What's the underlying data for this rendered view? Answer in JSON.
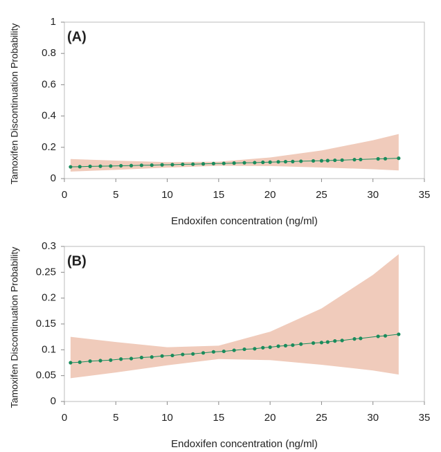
{
  "chart_data": [
    {
      "type": "line",
      "label": "(A)",
      "xlabel": "Endoxifen concentration (ng/ml)",
      "ylabel": "Tamoxifen Discontinuation Probability",
      "xlim": [
        0,
        35
      ],
      "ylim": [
        0,
        1
      ],
      "xticks": [
        0,
        5,
        10,
        15,
        20,
        25,
        30,
        35
      ],
      "yticks": [
        0,
        0.2,
        0.4,
        0.6,
        0.8,
        1
      ],
      "color": "#1a8c5c",
      "x": [
        0.6,
        1.5,
        2.5,
        3.5,
        4.5,
        5.5,
        6.5,
        7.5,
        8.5,
        9.5,
        10.5,
        11.5,
        12.5,
        13.5,
        14.5,
        15.5,
        16.5,
        17.5,
        18.5,
        19.3,
        20,
        20.8,
        21.5,
        22.2,
        23,
        24.2,
        25,
        25.6,
        26.3,
        27,
        28.2,
        28.8,
        30.5,
        31.2,
        32.5
      ],
      "values": [
        0.075,
        0.076,
        0.078,
        0.079,
        0.08,
        0.082,
        0.083,
        0.085,
        0.086,
        0.088,
        0.089,
        0.091,
        0.092,
        0.094,
        0.096,
        0.097,
        0.099,
        0.101,
        0.102,
        0.104,
        0.105,
        0.107,
        0.108,
        0.109,
        0.111,
        0.113,
        0.114,
        0.115,
        0.117,
        0.118,
        0.121,
        0.122,
        0.126,
        0.127,
        0.13
      ],
      "band": {
        "color": "#f0cbbb",
        "x": [
          0.6,
          5,
          10,
          15,
          20,
          25,
          30,
          32.5
        ],
        "lower": [
          0.045,
          0.056,
          0.07,
          0.082,
          0.08,
          0.071,
          0.06,
          0.052
        ],
        "upper": [
          0.125,
          0.115,
          0.105,
          0.108,
          0.135,
          0.18,
          0.245,
          0.285
        ]
      }
    },
    {
      "type": "line",
      "label": "(B)",
      "xlabel": "Endoxifen concentration (ng/ml)",
      "ylabel": "Tamoxifen Discontinuation Probability",
      "xlim": [
        0,
        35
      ],
      "ylim": [
        0,
        0.3
      ],
      "xticks": [
        0,
        5,
        10,
        15,
        20,
        25,
        30,
        35
      ],
      "yticks": [
        0,
        0.05,
        0.1,
        0.15,
        0.2,
        0.25,
        0.3
      ],
      "color": "#1a8c5c",
      "x": [
        0.6,
        1.5,
        2.5,
        3.5,
        4.5,
        5.5,
        6.5,
        7.5,
        8.5,
        9.5,
        10.5,
        11.5,
        12.5,
        13.5,
        14.5,
        15.5,
        16.5,
        17.5,
        18.5,
        19.3,
        20,
        20.8,
        21.5,
        22.2,
        23,
        24.2,
        25,
        25.6,
        26.3,
        27,
        28.2,
        28.8,
        30.5,
        31.2,
        32.5
      ],
      "values": [
        0.075,
        0.076,
        0.078,
        0.079,
        0.08,
        0.082,
        0.083,
        0.085,
        0.086,
        0.088,
        0.089,
        0.091,
        0.092,
        0.094,
        0.096,
        0.097,
        0.099,
        0.101,
        0.102,
        0.104,
        0.105,
        0.107,
        0.108,
        0.109,
        0.111,
        0.113,
        0.114,
        0.115,
        0.117,
        0.118,
        0.121,
        0.122,
        0.126,
        0.127,
        0.13
      ],
      "band": {
        "color": "#f0cbbb",
        "x": [
          0.6,
          5,
          10,
          15,
          20,
          25,
          30,
          32.5
        ],
        "lower": [
          0.045,
          0.056,
          0.07,
          0.082,
          0.08,
          0.071,
          0.06,
          0.052
        ],
        "upper": [
          0.125,
          0.115,
          0.105,
          0.108,
          0.135,
          0.18,
          0.245,
          0.285
        ]
      }
    }
  ]
}
